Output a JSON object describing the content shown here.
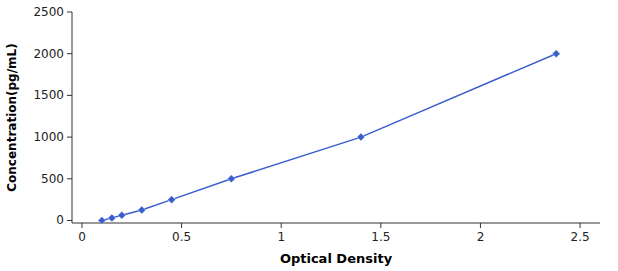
{
  "chart_data": {
    "type": "line",
    "xlabel": "Optical Density",
    "ylabel": "Concentration(pg/mL)",
    "x": [
      0.1,
      0.15,
      0.2,
      0.3,
      0.45,
      0.75,
      1.4,
      2.38
    ],
    "values": [
      0,
      31.25,
      62.5,
      125,
      250,
      500,
      1000,
      2000
    ],
    "color": "#3A5FCD",
    "marker": "diamond",
    "line_style": "solid",
    "xlim": [
      -0.05,
      2.6
    ],
    "ylim": [
      -30,
      2500
    ],
    "xticks": [
      0,
      0.5,
      1,
      1.5,
      2,
      2.5
    ],
    "yticks": [
      0,
      500,
      1000,
      1500,
      2000,
      2500
    ],
    "grid": false
  }
}
